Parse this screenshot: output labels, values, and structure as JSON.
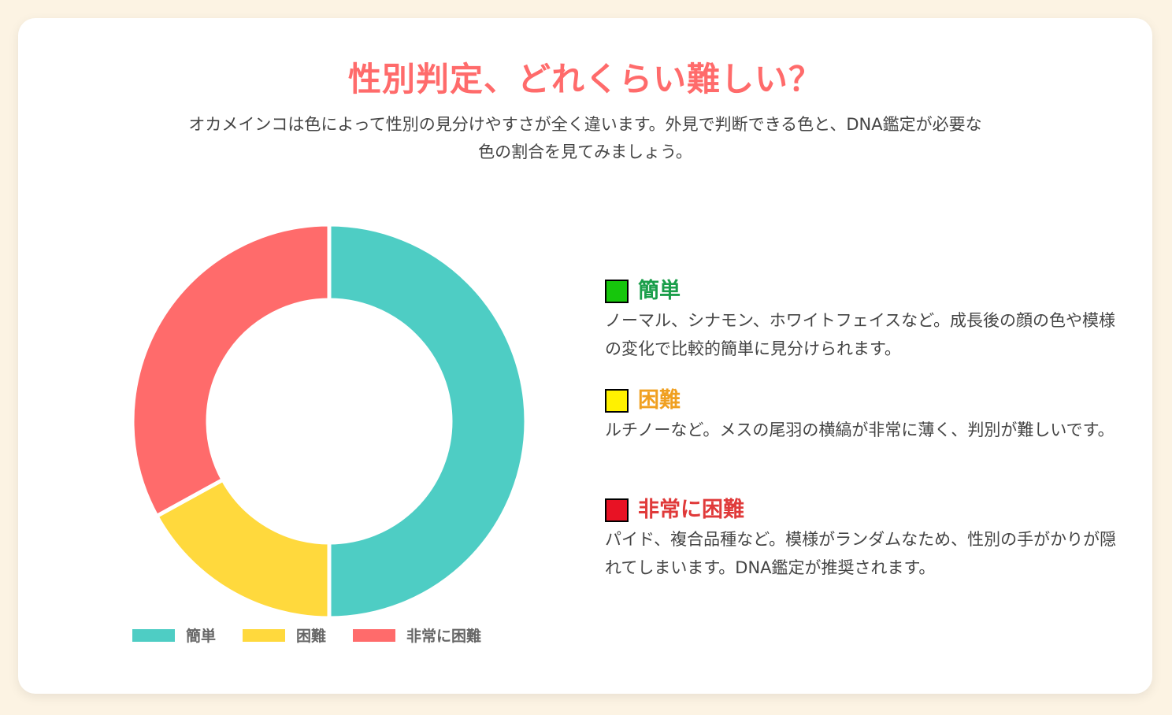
{
  "title": "性別判定、どれくらい難しい？",
  "subtitle": "オカメインコは色によって性別の見分けやすさが全く違います。外見で判断できる色と、DNA鑑定が必要な色の割合を見てみましょう。",
  "chart_data": {
    "type": "pie",
    "variant": "doughnut",
    "categories": [
      "簡単",
      "困難",
      "非常に困難"
    ],
    "values": [
      50,
      17,
      33
    ],
    "colors": [
      "#4ecdc4",
      "#ffd93d",
      "#ff6b6b"
    ],
    "legend": "bottom"
  },
  "details": [
    {
      "title": "簡単",
      "title_color": "#1a9e4a",
      "box_color": "#16c60c",
      "text": "ノーマル、シナモン、ホワイトフェイスなど。成長後の顔の色や模様の変化で比較的簡単に見分けられます。"
    },
    {
      "title": "困難",
      "title_color": "#f0a020",
      "box_color": "#fff100",
      "text": "ルチノーなど。メスの尾羽の横縞が非常に薄く、判別が難しいです。"
    },
    {
      "title": "非常に困難",
      "title_color": "#e03a3a",
      "box_color": "#e81224",
      "text": "パイド、複合品種など。模様がランダムなため、性別の手がかりが隠れてしまいます。DNA鑑定が推奨されます。"
    }
  ]
}
